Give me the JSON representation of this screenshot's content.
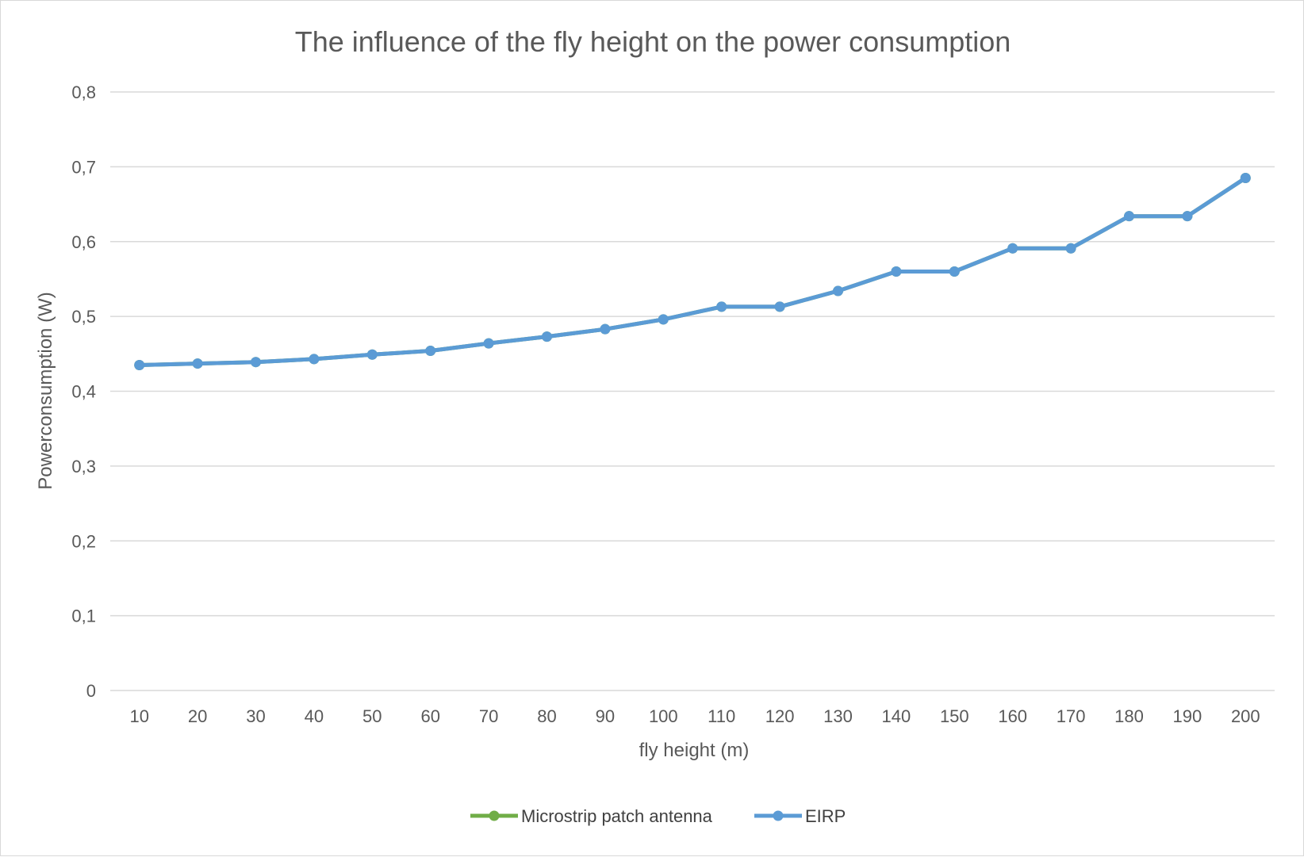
{
  "chart_data": {
    "type": "line",
    "title": "The influence of the fly height on the power consumption",
    "xlabel": "fly height (m)",
    "ylabel": "Powerconsumption (W)",
    "ylim": [
      0,
      0.8
    ],
    "yticks": [
      0,
      0.1,
      0.2,
      0.3,
      0.4,
      0.5,
      0.6,
      0.7,
      0.8
    ],
    "ytick_labels": [
      "0",
      "0,1",
      "0,2",
      "0,3",
      "0,4",
      "0,5",
      "0,6",
      "0,7",
      "0,8"
    ],
    "categories": [
      "10",
      "20",
      "30",
      "40",
      "50",
      "60",
      "70",
      "80",
      "90",
      "100",
      "110",
      "120",
      "130",
      "140",
      "150",
      "160",
      "170",
      "180",
      "190",
      "200"
    ],
    "grid": true,
    "legend_position": "bottom",
    "series": [
      {
        "name": "Microstrip patch antenna",
        "color": "#70ad47",
        "values": [
          0.435,
          0.437,
          0.439,
          0.443,
          0.449,
          0.454,
          0.464,
          0.473,
          0.483,
          0.496,
          0.513,
          0.513,
          0.534,
          0.56,
          0.56,
          0.591,
          0.591,
          0.634,
          0.634,
          0.685
        ]
      },
      {
        "name": "EIRP",
        "color": "#5b9bd5",
        "values": [
          0.435,
          0.437,
          0.439,
          0.443,
          0.449,
          0.454,
          0.464,
          0.473,
          0.483,
          0.496,
          0.513,
          0.513,
          0.534,
          0.56,
          0.56,
          0.591,
          0.591,
          0.634,
          0.634,
          0.685
        ]
      }
    ],
    "colors": {
      "grid": "#d9d9d9",
      "text": "#595959"
    }
  }
}
